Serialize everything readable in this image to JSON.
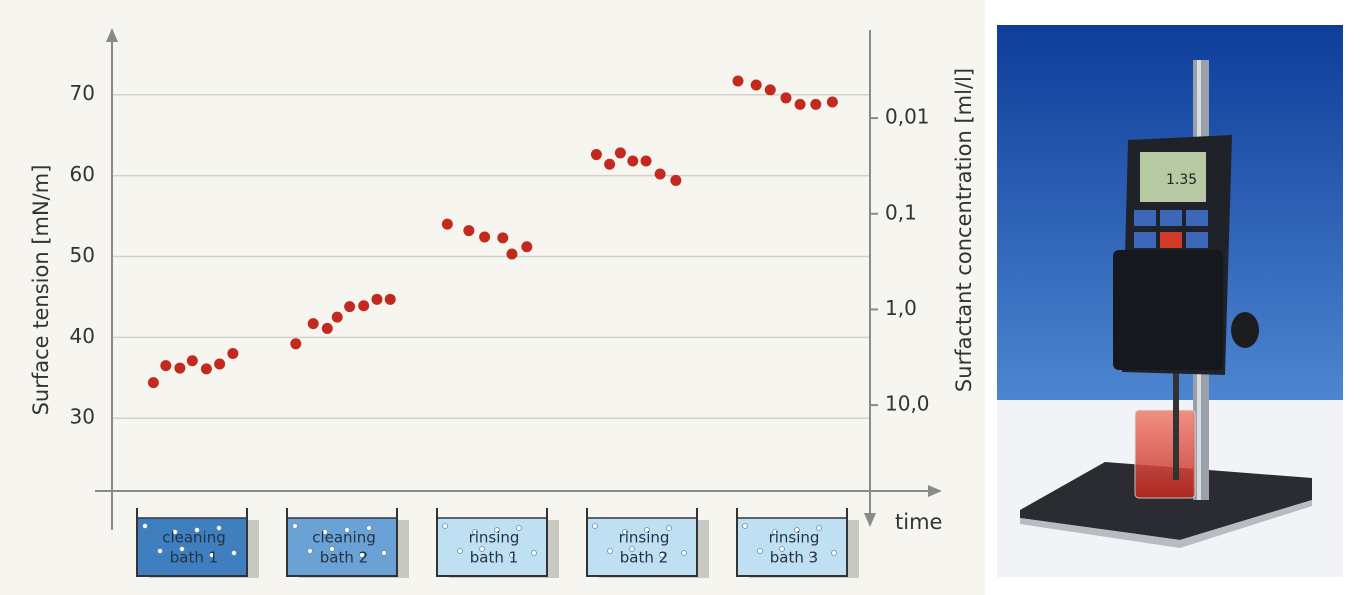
{
  "chart_data": {
    "type": "scatter",
    "ylabel": "Surface tension [mN/m]",
    "y2label": "Surfactant concentration [ml/l]",
    "xlabel": "time",
    "color": "#c4291f",
    "xlim": [
      0,
      100
    ],
    "ylim": [
      21,
      78
    ],
    "yticks": [
      30,
      40,
      50,
      60,
      70
    ],
    "y2lim": [
      0.0012,
      79
    ],
    "y2_log": true,
    "y2_reversed": true,
    "y2ticks": [
      {
        "value": 0.01,
        "label": "0,01"
      },
      {
        "value": 0.1,
        "label": "0,1"
      },
      {
        "value": 1,
        "label": "1,0"
      },
      {
        "value": 10,
        "label": "10,0"
      }
    ],
    "grid": true,
    "x": [
      5.0,
      6.5,
      8.2,
      9.7,
      11.4,
      13.0,
      14.6,
      22.2,
      24.3,
      26.0,
      27.2,
      28.7,
      30.4,
      32.0,
      33.6,
      40.5,
      43.1,
      45.0,
      47.2,
      48.3,
      50.1,
      58.5,
      60.1,
      61.4,
      62.9,
      64.5,
      66.2,
      68.1,
      75.6,
      77.8,
      79.5,
      81.4,
      83.1,
      85.0,
      87.0
    ],
    "values": [
      34.4,
      36.5,
      36.2,
      37.1,
      36.1,
      36.7,
      38.0,
      39.2,
      41.7,
      41.1,
      42.5,
      43.8,
      43.9,
      44.7,
      44.7,
      54.0,
      53.2,
      52.4,
      52.3,
      50.3,
      51.2,
      62.6,
      61.4,
      62.8,
      61.8,
      61.8,
      60.2,
      59.4,
      71.7,
      71.2,
      70.6,
      69.6,
      68.8,
      68.8,
      69.1
    ],
    "baths": [
      [
        "cleaning",
        "bath 1"
      ],
      [
        "cleaning",
        "bath 2"
      ],
      [
        "rinsing",
        "bath 1"
      ],
      [
        "rinsing",
        "bath 2"
      ],
      [
        "rinsing",
        "bath 3"
      ]
    ]
  }
}
